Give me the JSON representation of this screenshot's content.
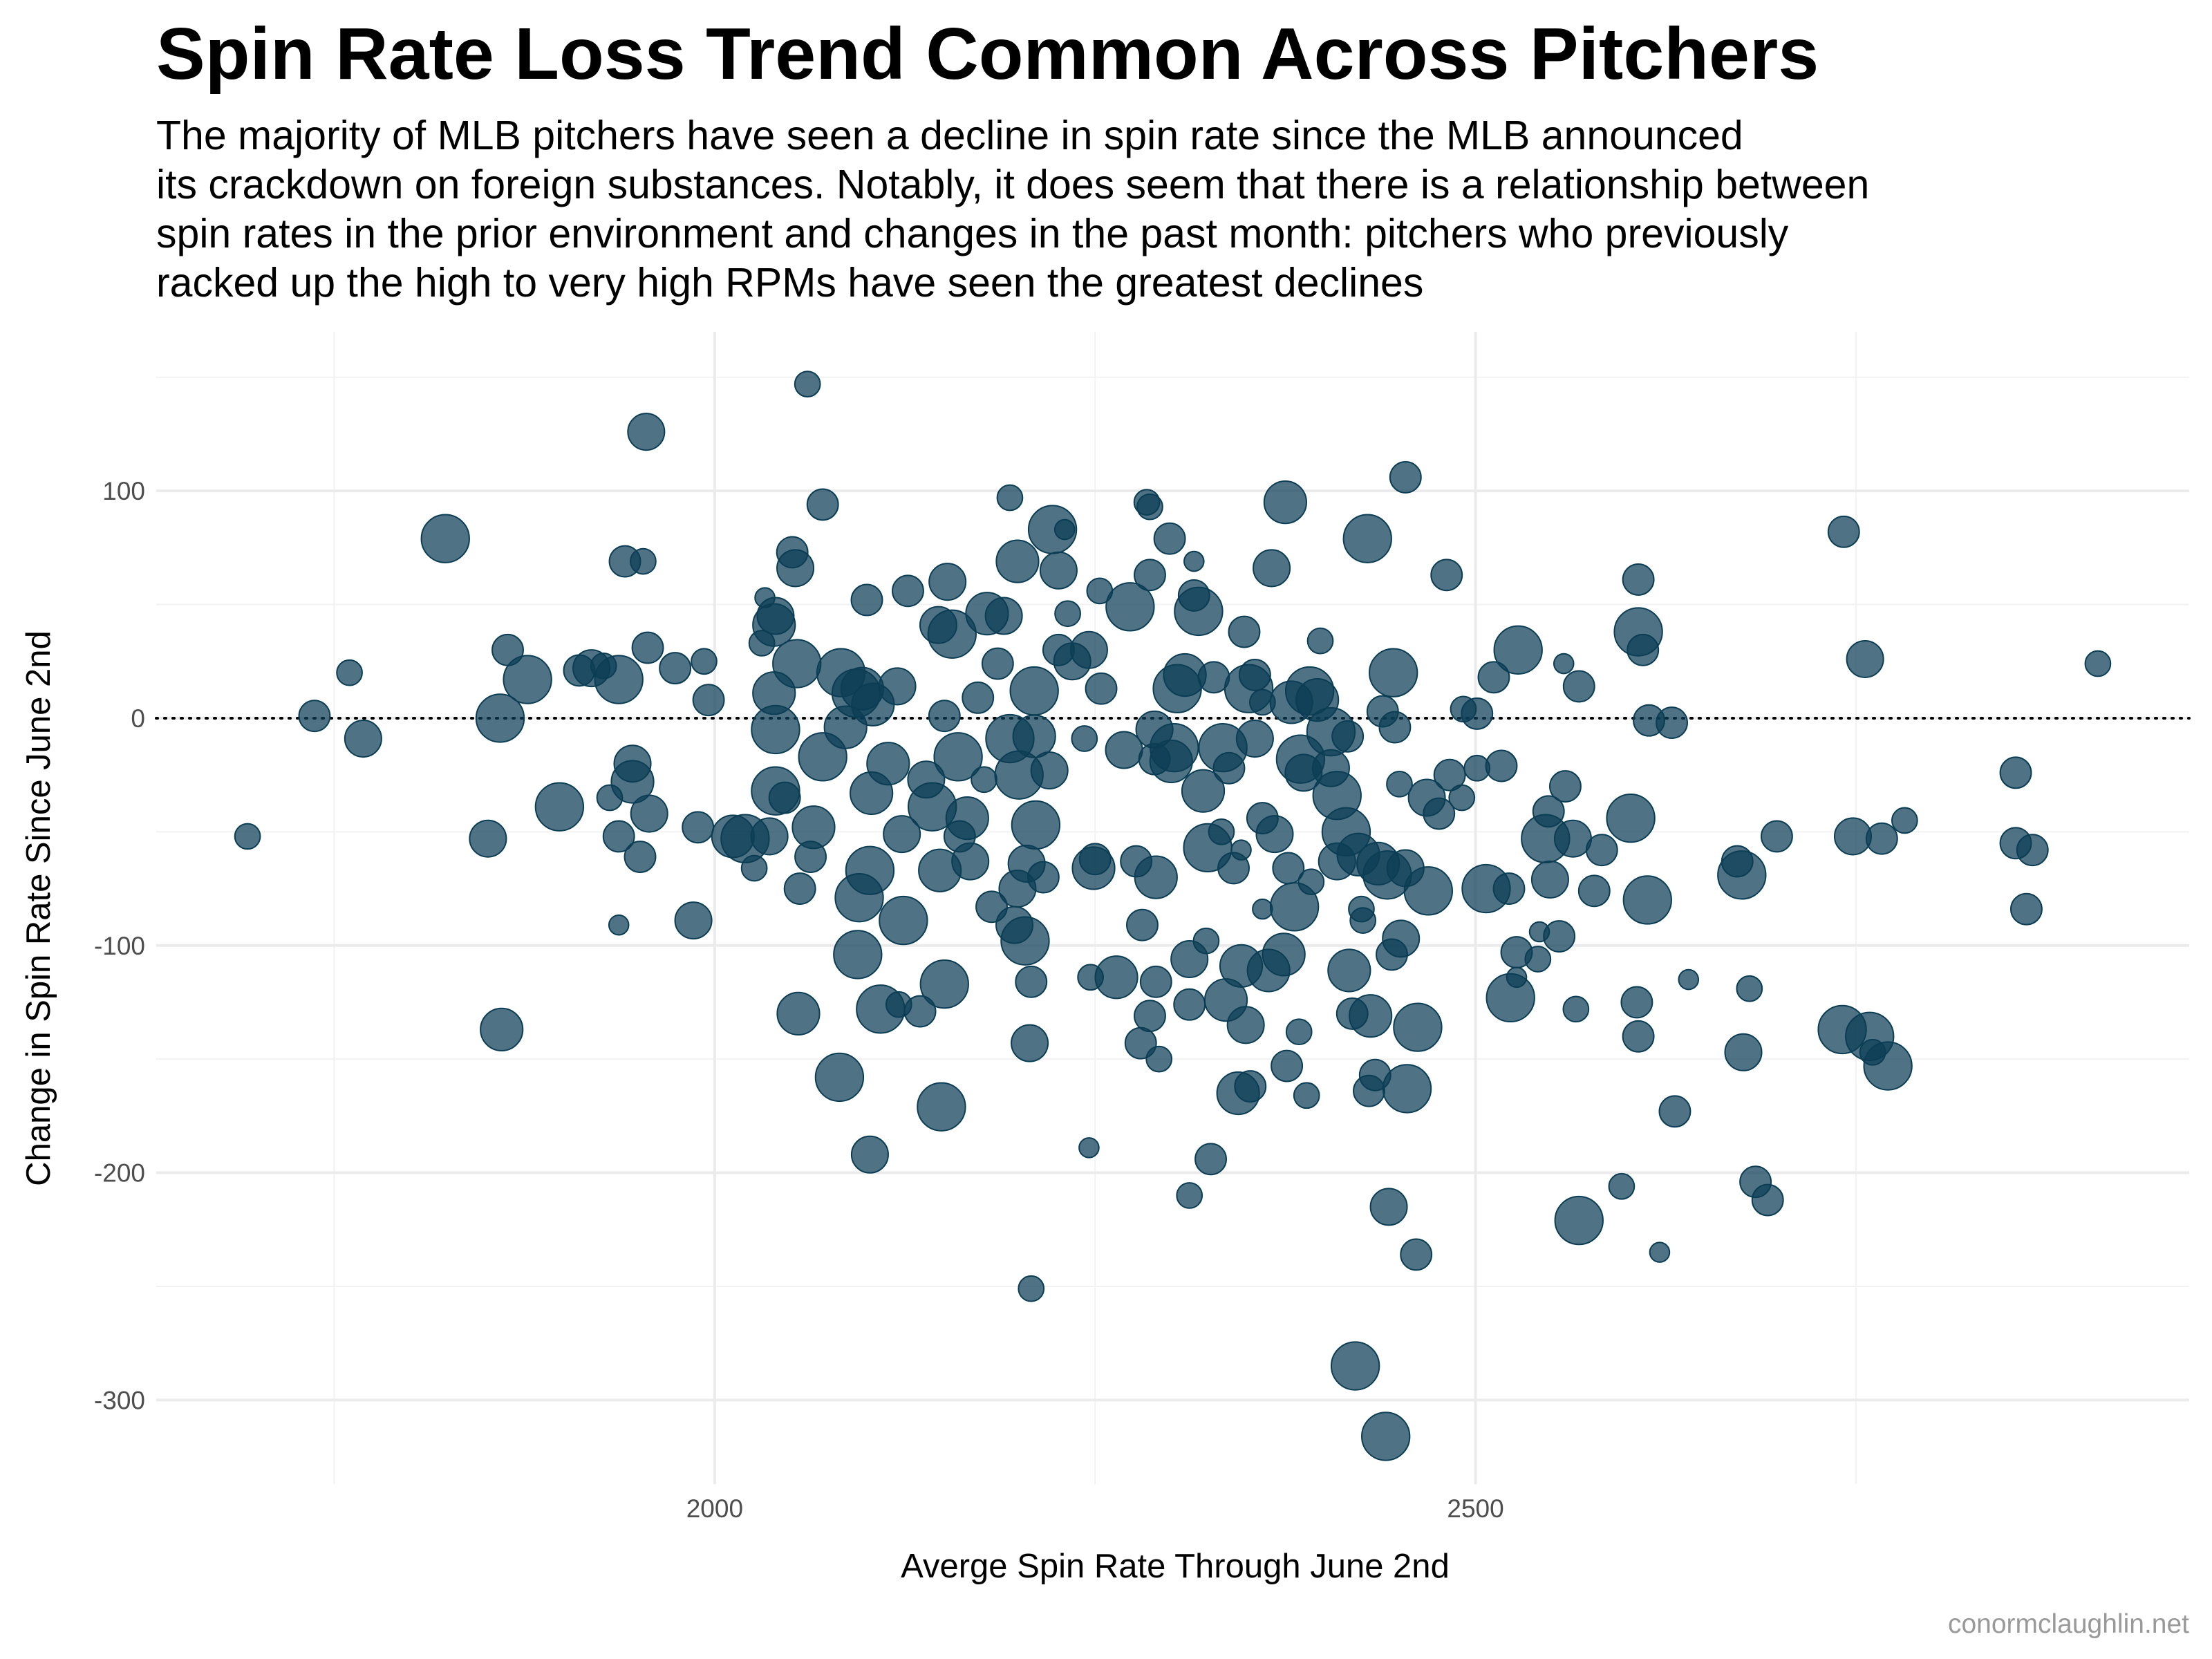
{
  "chart_data": {
    "type": "scatter",
    "title": "Spin Rate Loss Trend Common Across Pitchers",
    "subtitle": [
      "The majority of MLB pitchers have seen a decline in spin rate since the MLB announced",
      "its crackdown on foreign substances. Notably, it does seem that there is a relationship between",
      "spin rates in the prior environment and changes in the past month: pitchers who previously",
      "racked up the high to very high RPMs have seen the greatest declines"
    ],
    "xlabel": "Averge Spin Rate Through June 2nd",
    "ylabel": "Change in Spin Rate Since June 2nd",
    "caption": "conormclaughlin.net",
    "color": "#0b3d55",
    "grid": true,
    "minor_grid": true,
    "hline": 0,
    "xlim": [
      1633,
      2969
    ],
    "ylim": [
      -337,
      170
    ],
    "xticks": [
      2000,
      2500
    ],
    "yticks": [
      -300,
      -200,
      -100,
      0,
      100
    ],
    "x": [
      1693,
      1737,
      1760,
      1769,
      1823,
      1851,
      1859,
      1860,
      1864,
      1877,
      1898,
      1911,
      1919,
      1927,
      1931,
      1937,
      1937,
      1937,
      1941,
      1946,
      1946,
      1951,
      1953,
      1955,
      1956,
      1957,
      1974,
      1986,
      1989,
      1993,
      1996,
      2012,
      2020,
      2026,
      2031,
      2033,
      2036,
      2039,
      2040,
      2039,
      2040,
      2040,
      2046,
      2051,
      2053,
      2055,
      2054,
      2056,
      2061,
      2063,
      2065,
      2071,
      2071,
      2082,
      2083,
      2086,
      2093,
      2094,
      2095,
      2097,
      2100,
      2102,
      2102,
      2104,
      2103,
      2109,
      2114,
      2120,
      2121,
      2124,
      2123,
      2127,
      2135,
      2139,
      2143,
      2149,
      2148,
      2151,
      2151,
      2153,
      2147,
      2156,
      2160,
      2166,
      2161,
      2168,
      2173,
      2177,
      2179,
      2182,
      2186,
      2190,
      2194,
      2194,
      2197,
      2199,
      2200,
      2199,
      2204,
      2205,
      2208,
      2207,
      2208,
      2210,
      2210,
      2211,
      2216,
      2220,
      2222,
      2226,
      2230,
      2232,
      2226,
      2235,
      2243,
      2246,
      2247,
      2246,
      2249,
      2250,
      2254,
      2253,
      2264,
      2269,
      2273,
      2277,
      2280,
      2281,
      2284,
      2286,
      2286,
      2289,
      2290,
      2289,
      2286,
      2290,
      2292,
      2299,
      2300,
      2302,
      2304,
      2309,
      2312,
      2312,
      2312,
      2315,
      2315,
      2318,
      2321,
      2326,
      2323,
      2324,
      2328,
      2334,
      2333,
      2336,
      2338,
      2341,
      2344,
      2346,
      2348,
      2349,
      2351,
      2346,
      2352,
      2355,
      2355,
      2360,
      2360,
      2360,
      2364,
      2366,
      2368,
      2374,
      2375,
      2377,
      2376,
      2379,
      2381,
      2384,
      2385,
      2387,
      2389,
      2391,
      2392,
      2396,
      2398,
      2405,
      2405,
      2409,
      2409,
      2415,
      2416,
      2417,
      2419,
      2421,
      2423,
      2425,
      2426,
      2430,
      2431,
      2429,
      2434,
      2436,
      2439,
      2442,
      2441,
      2443,
      2445,
      2447,
      2446,
      2450,
      2451,
      2454,
      2455,
      2454,
      2461,
      2462,
      2468,
      2469,
      2476,
      2483,
      2481,
      2491,
      2492,
      2501,
      2501,
      2507,
      2512,
      2517,
      2522,
      2523,
      2528,
      2527,
      2527,
      2541,
      2542,
      2546,
      2548,
      2549,
      2555,
      2559,
      2558,
      2566,
      2564,
      2568,
      2568,
      2578,
      2583,
      2596,
      2602,
      2607,
      2607,
      2610,
      2606,
      2607,
      2613,
      2614,
      2621,
      2629,
      2631,
      2640,
      2672,
      2675,
      2676,
      2680,
      2684,
      2692,
      2698,
      2742,
      2741,
      2748,
      2756,
      2759,
      2761,
      2767,
      2771,
      2782,
      2855,
      2855,
      2866,
      2862,
      2909
    ],
    "values": [
      -52,
      1,
      20,
      -9,
      79,
      -53,
      0,
      -137,
      30,
      17,
      -39,
      21,
      22,
      23,
      -35,
      17,
      -52,
      -91,
      69,
      -20,
      -28,
      -61,
      69,
      126,
      31,
      -42,
      22,
      -89,
      -48,
      25,
      8,
      -52,
      -53,
      -66,
      33,
      53,
      -52,
      41,
      45,
      11,
      -5,
      -32,
      -35,
      73,
      66,
      -130,
      24,
      -75,
      147,
      -61,
      -48,
      94,
      -17,
      -158,
      20,
      -4,
      11,
      -104,
      -79,
      13,
      52,
      -192,
      -67,
      6,
      -33,
      -128,
      -20,
      14,
      -126,
      -89,
      -51,
      56,
      -129,
      -27,
      -39,
      -171,
      -67,
      1,
      -117,
      60,
      41,
      37,
      -17,
      -44,
      -52,
      -63,
      9,
      -27,
      46,
      -83,
      24,
      45,
      -9,
      97,
      -91,
      69,
      -25,
      -75,
      -98,
      -64,
      -116,
      -143,
      -251,
      -8,
      12,
      -47,
      -70,
      -23,
      83,
      65,
      83,
      46,
      30,
      25,
      -9,
      30,
      -114,
      -189,
      -66,
      -62,
      13,
      56,
      -114,
      -14,
      49,
      -63,
      -143,
      -91,
      95,
      93,
      63,
      -5,
      -70,
      -18,
      -131,
      -116,
      -150,
      79,
      -19,
      -13,
      13,
      19,
      -126,
      -210,
      -106,
      69,
      54,
      47,
      -32,
      -194,
      -98,
      -57,
      18,
      -13,
      -50,
      -124,
      -22,
      -66,
      -165,
      -58,
      38,
      -135,
      13,
      -109,
      -162,
      -9,
      19,
      -44,
      7,
      -84,
      -111,
      66,
      -51,
      -104,
      95,
      -66,
      -153,
      7,
      -83,
      -138,
      -18,
      -24,
      -166,
      12,
      -72,
      8,
      34,
      -6,
      -22,
      -34,
      -63,
      -50,
      -8,
      -111,
      -130,
      -285,
      -60,
      -84,
      -89,
      -164,
      -131,
      79,
      -157,
      -64,
      3,
      -69,
      -316,
      -215,
      -104,
      -4,
      20,
      -29,
      -97,
      106,
      -163,
      -66,
      -236,
      -136,
      -35,
      -76,
      -42,
      -25,
      63,
      -35,
      4,
      2,
      -22,
      -75,
      18,
      -21,
      -75,
      -123,
      30,
      -103,
      -114,
      -106,
      -94,
      -53,
      -41,
      -71,
      -96,
      -30,
      24,
      -128,
      -53,
      14,
      -221,
      -76,
      -58,
      -206,
      -44,
      61,
      38,
      30,
      -125,
      -140,
      -80,
      -1,
      -235,
      -2,
      -173,
      -115,
      -63,
      -69,
      -147,
      -119,
      -204,
      -212,
      -52,
      82,
      -137,
      -52,
      26,
      -140,
      -147,
      -53,
      -153,
      -45,
      -24,
      -55,
      -58,
      -84,
      24
    ],
    "sizes": [
      2,
      3,
      2,
      4,
      6,
      4,
      6,
      5,
      3,
      6,
      6,
      3,
      4,
      2,
      2,
      6,
      3,
      1,
      3,
      4,
      5,
      3,
      2,
      4,
      3,
      4,
      3,
      4,
      3,
      2,
      3,
      5,
      6,
      2,
      2,
      1,
      4,
      5,
      4,
      5,
      6,
      6,
      3,
      3,
      4,
      5,
      6,
      3,
      2,
      3,
      5,
      3,
      6,
      6,
      6,
      5,
      6,
      6,
      6,
      5,
      3,
      4,
      6,
      5,
      5,
      6,
      5,
      4,
      2,
      6,
      4,
      3,
      3,
      4,
      6,
      6,
      5,
      3,
      6,
      4,
      4,
      6,
      6,
      5,
      3,
      4,
      3,
      2,
      5,
      3,
      3,
      4,
      6,
      2,
      4,
      5,
      6,
      4,
      6,
      4,
      3,
      4,
      2,
      5,
      6,
      6,
      3,
      4,
      6,
      4,
      1,
      2,
      3,
      4,
      2,
      4,
      2,
      1,
      5,
      3,
      3,
      2,
      5,
      4,
      6,
      3,
      3,
      3,
      2,
      2,
      3,
      4,
      5,
      3,
      3,
      3,
      2,
      3,
      5,
      6,
      6,
      5,
      3,
      2,
      4,
      1,
      3,
      6,
      5,
      3,
      2,
      6,
      3,
      6,
      2,
      5,
      3,
      3,
      5,
      1,
      3,
      4,
      6,
      5,
      3,
      4,
      3,
      3,
      2,
      1,
      5,
      4,
      4,
      5,
      5,
      3,
      3,
      5,
      6,
      2,
      6,
      4,
      2,
      6,
      2,
      5,
      2,
      6,
      4,
      6,
      4,
      6,
      3,
      5,
      3,
      6,
      5,
      2,
      2,
      3,
      5,
      6,
      3,
      5,
      3,
      6,
      6,
      4,
      3,
      3,
      6,
      2,
      4,
      3,
      6,
      4,
      3,
      6,
      4,
      6,
      3,
      3,
      3,
      2,
      2,
      3,
      2,
      6,
      3,
      3,
      3,
      6,
      6,
      3,
      1,
      2,
      1,
      6,
      3,
      4,
      3,
      3,
      1,
      2,
      4,
      3,
      6,
      3,
      3,
      2,
      6,
      3,
      6,
      3,
      3,
      3,
      6,
      3,
      1,
      3,
      3,
      1,
      3,
      6,
      4,
      2,
      3,
      3,
      3,
      3,
      6,
      4,
      4,
      6,
      2,
      3,
      6,
      2,
      3,
      3,
      3,
      3,
      2
    ]
  }
}
